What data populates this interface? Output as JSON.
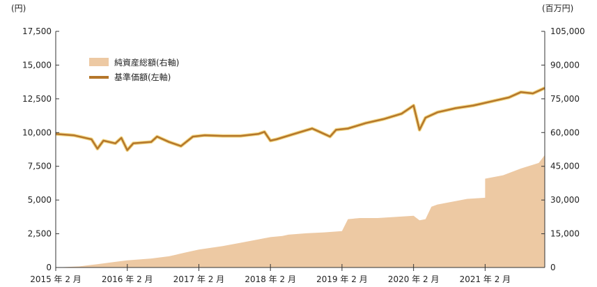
{
  "chart_data": {
    "type": "area",
    "left_axis": {
      "unit": "(円)",
      "ylim": [
        0,
        17500
      ],
      "ticks": [
        "0",
        "2,500",
        "5,000",
        "7,500",
        "10,000",
        "12,500",
        "15,000",
        "17,500"
      ]
    },
    "right_axis": {
      "unit": "(百万円)",
      "ylim": [
        0,
        105000
      ],
      "ticks": [
        "0",
        "15,000",
        "30,000",
        "45,000",
        "60,000",
        "75,000",
        "90,000",
        "105,000"
      ]
    },
    "x_ticks": [
      "2015 年 2 月",
      "2016 年 2 月",
      "2017 年 2 月",
      "2018 年 2 月",
      "2019 年 2 月",
      "2020 年 2 月",
      "2021 年 2 月"
    ],
    "x_range": [
      "2015-02",
      "2021-12"
    ],
    "legend": {
      "position": "top-left",
      "items": [
        "純資産総額(右軸)",
        "基準価額(左軸)"
      ]
    },
    "grid": false,
    "series": [
      {
        "name": "純資産総額(右軸)",
        "type": "area",
        "axis": "right",
        "color": "#EDC9A3",
        "x": [
          "2015-02",
          "2015-06",
          "2015-09",
          "2015-12",
          "2016-02",
          "2016-06",
          "2016-09",
          "2016-12",
          "2017-02",
          "2017-06",
          "2017-09",
          "2017-12",
          "2018-02",
          "2018-04",
          "2018-05",
          "2018-08",
          "2018-11",
          "2019-02",
          "2019-03",
          "2019-05",
          "2019-08",
          "2019-11",
          "2020-02",
          "2020-03",
          "2020-04",
          "2020-05",
          "2020-06",
          "2020-08",
          "2020-11",
          "2021-02",
          "2021-02",
          "2021-05",
          "2021-08",
          "2021-11",
          "2021-12"
        ],
        "values": [
          0,
          500,
          1500,
          2500,
          3200,
          4000,
          5000,
          6800,
          8000,
          9500,
          11000,
          12500,
          13500,
          14000,
          14600,
          15200,
          15600,
          16200,
          21500,
          22000,
          22000,
          22500,
          23000,
          21000,
          21500,
          27000,
          28000,
          29000,
          30500,
          31000,
          39500,
          41000,
          44000,
          46500,
          50000
        ]
      },
      {
        "name": "基準価額(左軸)",
        "type": "line",
        "axis": "left",
        "color": "#B5762A",
        "x": [
          "2015-02",
          "2015-05",
          "2015-08",
          "2015-09",
          "2015-10",
          "2015-12",
          "2016-01",
          "2016-02",
          "2016-03",
          "2016-06",
          "2016-07",
          "2016-09",
          "2016-11",
          "2017-01",
          "2017-03",
          "2017-06",
          "2017-09",
          "2017-12",
          "2018-01",
          "2018-02",
          "2018-03",
          "2018-06",
          "2018-09",
          "2018-10",
          "2018-12",
          "2019-01",
          "2019-03",
          "2019-06",
          "2019-09",
          "2019-12",
          "2020-01",
          "2020-02",
          "2020-03",
          "2020-04",
          "2020-06",
          "2020-09",
          "2020-12",
          "2021-01",
          "2021-03",
          "2021-06",
          "2021-08",
          "2021-10",
          "2021-12"
        ],
        "values": [
          9900,
          9800,
          9500,
          8800,
          9400,
          9200,
          9600,
          8700,
          9200,
          9300,
          9700,
          9300,
          9000,
          9700,
          9800,
          9750,
          9750,
          9900,
          10050,
          9400,
          9500,
          9900,
          10300,
          10100,
          9700,
          10200,
          10300,
          10700,
          11000,
          11400,
          11700,
          12000,
          10200,
          11100,
          11500,
          11800,
          12000,
          12100,
          12300,
          12600,
          13000,
          12900,
          13300
        ]
      }
    ]
  }
}
